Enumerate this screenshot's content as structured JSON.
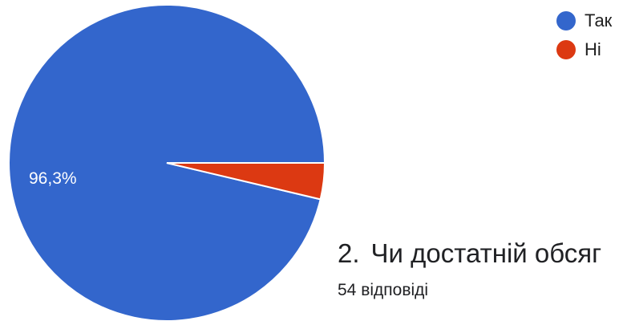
{
  "chart_data": {
    "type": "pie",
    "categories": [
      "Так",
      "Ні"
    ],
    "values": [
      96.3,
      3.7
    ],
    "colors": [
      "#3366cc",
      "#dc3912"
    ],
    "data_labels": [
      "96,3%",
      ""
    ],
    "legend_position": "top-right"
  },
  "next_question": {
    "number": "2.",
    "text": "Чи достатній обсяг",
    "responses_count": "54 відповіді"
  }
}
